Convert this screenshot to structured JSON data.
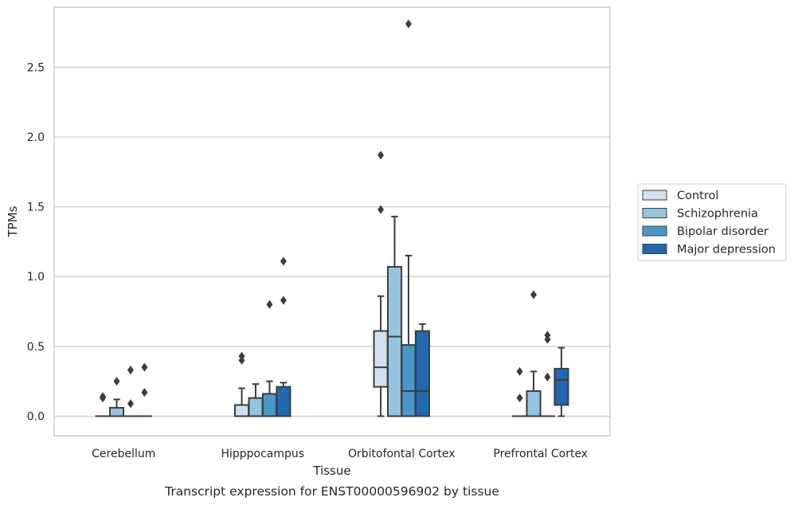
{
  "chart_data": {
    "type": "boxplot",
    "xlabel": "Tissue",
    "ylabel": "TPMs",
    "caption": "Transcript expression for ENST00000596902 by tissue",
    "categories": [
      "Cerebellum",
      "Hipppocampus",
      "Orbitofontal Cortex",
      "Prefrontal Cortex"
    ],
    "ylim": [
      -0.14,
      2.93
    ],
    "yticks": [
      0.0,
      0.5,
      1.0,
      1.5,
      2.0,
      2.5
    ],
    "ytick_labels": [
      "0.0",
      "0.5",
      "1.0",
      "1.5",
      "2.0",
      "2.5"
    ],
    "grid": "horizontal",
    "legend_position": "right",
    "series": [
      {
        "name": "Control",
        "color": "#d0e1f2",
        "boxes": [
          {
            "whislo": 0.0,
            "q1": 0.0,
            "med": 0.0,
            "q3": 0.0,
            "whishi": 0.0,
            "fliers": [
              0.13,
              0.14
            ]
          },
          {
            "whislo": 0.0,
            "q1": 0.0,
            "med": 0.0,
            "q3": 0.08,
            "whishi": 0.2,
            "fliers": [
              0.4,
              0.43
            ]
          },
          {
            "whislo": 0.0,
            "q1": 0.21,
            "med": 0.35,
            "q3": 0.61,
            "whishi": 0.86,
            "fliers": [
              1.48,
              1.87
            ]
          },
          {
            "whislo": 0.0,
            "q1": 0.0,
            "med": 0.0,
            "q3": 0.0,
            "whishi": 0.0,
            "fliers": [
              0.13,
              0.32
            ]
          }
        ]
      },
      {
        "name": "Schizophrenia",
        "color": "#94c4df",
        "boxes": [
          {
            "whislo": 0.0,
            "q1": 0.0,
            "med": 0.0,
            "q3": 0.06,
            "whishi": 0.12,
            "fliers": [
              0.25
            ]
          },
          {
            "whislo": 0.0,
            "q1": 0.0,
            "med": 0.0,
            "q3": 0.13,
            "whishi": 0.23,
            "fliers": []
          },
          {
            "whislo": 0.0,
            "q1": 0.0,
            "med": 0.57,
            "q3": 1.07,
            "whishi": 1.43,
            "fliers": []
          },
          {
            "whislo": 0.0,
            "q1": 0.0,
            "med": 0.0,
            "q3": 0.18,
            "whishi": 0.32,
            "fliers": [
              0.87
            ]
          }
        ]
      },
      {
        "name": "Bipolar disorder",
        "color": "#4a98c9",
        "boxes": [
          {
            "whislo": 0.0,
            "q1": 0.0,
            "med": 0.0,
            "q3": 0.0,
            "whishi": 0.0,
            "fliers": [
              0.09,
              0.33
            ]
          },
          {
            "whislo": 0.0,
            "q1": 0.0,
            "med": 0.0,
            "q3": 0.16,
            "whishi": 0.25,
            "fliers": [
              0.8
            ]
          },
          {
            "whislo": 0.0,
            "q1": 0.0,
            "med": 0.18,
            "q3": 0.51,
            "whishi": 1.15,
            "fliers": [
              2.81
            ]
          },
          {
            "whislo": 0.0,
            "q1": 0.0,
            "med": 0.0,
            "q3": 0.0,
            "whishi": 0.0,
            "fliers": [
              0.28,
              0.55,
              0.58
            ]
          }
        ]
      },
      {
        "name": "Major depression",
        "color": "#2068af",
        "boxes": [
          {
            "whislo": 0.0,
            "q1": 0.0,
            "med": 0.0,
            "q3": 0.0,
            "whishi": 0.0,
            "fliers": [
              0.17,
              0.35
            ]
          },
          {
            "whislo": 0.0,
            "q1": 0.0,
            "med": 0.0,
            "q3": 0.21,
            "whishi": 0.24,
            "fliers": [
              0.83,
              1.11
            ]
          },
          {
            "whislo": 0.0,
            "q1": 0.0,
            "med": 0.18,
            "q3": 0.61,
            "whishi": 0.66,
            "fliers": []
          },
          {
            "whislo": 0.0,
            "q1": 0.08,
            "med": 0.26,
            "q3": 0.34,
            "whishi": 0.49,
            "fliers": []
          }
        ]
      }
    ]
  }
}
